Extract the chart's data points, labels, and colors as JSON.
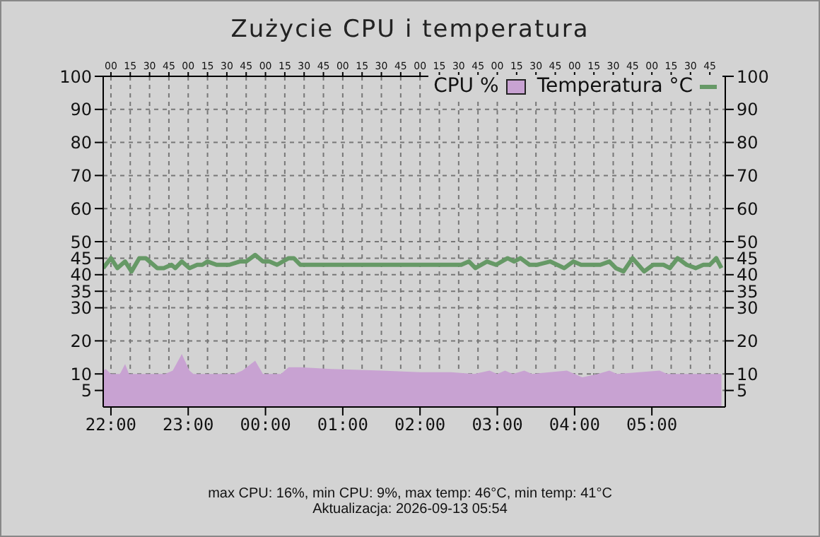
{
  "chart_data": {
    "type": "line",
    "title": "Zużycie CPU i temperatura",
    "annotations": [
      "max CPU: 16%, min CPU: 9%, max temp: 46°C, min temp: 41°C",
      "Aktualizacja: 2026-09-13 05:54"
    ],
    "xlim": [
      "2026-09-12T21:54",
      "2026-09-13T05:57"
    ],
    "xticks": [
      {
        "value": "2026-09-12T22:00",
        "label": "22:00"
      },
      {
        "value": "2026-09-12T23:00",
        "label": "23:00"
      },
      {
        "value": "2026-09-13T00:00",
        "label": "00:00"
      },
      {
        "value": "2026-09-13T01:00",
        "label": "01:00"
      },
      {
        "value": "2026-09-13T02:00",
        "label": "02:00"
      },
      {
        "value": "2026-09-13T03:00",
        "label": "03:00"
      },
      {
        "value": "2026-09-13T04:00",
        "label": "04:00"
      },
      {
        "value": "2026-09-13T05:00",
        "label": "05:00"
      }
    ],
    "x2lim": [
      "2026-09-12T21:54",
      "2026-09-13T05:57"
    ],
    "x2ticks": [
      {
        "value": "2026-09-12T22:00",
        "label": "00"
      },
      {
        "value": "2026-09-12T22:15",
        "label": "15"
      },
      {
        "value": "2026-09-12T22:30",
        "label": "30"
      },
      {
        "value": "2026-09-12T22:45",
        "label": "45"
      },
      {
        "value": "2026-09-12T23:00",
        "label": "00"
      },
      {
        "value": "2026-09-12T23:15",
        "label": "15"
      },
      {
        "value": "2026-09-12T23:30",
        "label": "30"
      },
      {
        "value": "2026-09-12T23:45",
        "label": "45"
      },
      {
        "value": "2026-09-13T00:00",
        "label": "00"
      },
      {
        "value": "2026-09-13T00:15",
        "label": "15"
      },
      {
        "value": "2026-09-13T00:30",
        "label": "30"
      },
      {
        "value": "2026-09-13T00:45",
        "label": "45"
      },
      {
        "value": "2026-09-13T01:00",
        "label": "00"
      },
      {
        "value": "2026-09-13T01:15",
        "label": "15"
      },
      {
        "value": "2026-09-13T01:30",
        "label": "30"
      },
      {
        "value": "2026-09-13T01:45",
        "label": "45"
      },
      {
        "value": "2026-09-13T02:00",
        "label": "00"
      },
      {
        "value": "2026-09-13T02:15",
        "label": "15"
      },
      {
        "value": "2026-09-13T02:30",
        "label": "30"
      },
      {
        "value": "2026-09-13T02:45",
        "label": "45"
      },
      {
        "value": "2026-09-13T03:00",
        "label": "00"
      },
      {
        "value": "2026-09-13T03:15",
        "label": "15"
      },
      {
        "value": "2026-09-13T03:30",
        "label": "30"
      },
      {
        "value": "2026-09-13T03:45",
        "label": "45"
      },
      {
        "value": "2026-09-13T04:00",
        "label": "00"
      },
      {
        "value": "2026-09-13T04:15",
        "label": "15"
      },
      {
        "value": "2026-09-13T04:30",
        "label": "30"
      },
      {
        "value": "2026-09-13T04:45",
        "label": "45"
      },
      {
        "value": "2026-09-13T05:00",
        "label": "00"
      },
      {
        "value": "2026-09-13T05:15",
        "label": "15"
      },
      {
        "value": "2026-09-13T05:30",
        "label": "30"
      },
      {
        "value": "2026-09-13T05:45",
        "label": "45"
      }
    ],
    "ylim": [
      0,
      100
    ],
    "yticks": [
      5,
      10,
      20,
      30,
      35,
      40,
      45,
      50,
      60,
      70,
      80,
      90,
      100
    ],
    "y2lim": [
      0,
      100
    ],
    "y2ticks": [
      5,
      10,
      20,
      30,
      35,
      40,
      45,
      50,
      60,
      70,
      80,
      90,
      100
    ],
    "grid": true,
    "legend": "top right",
    "marker": "none",
    "series": [
      {
        "name": "CPU %",
        "type": "area",
        "color": "#c8a2d2",
        "x": [
          "2026-09-12T21:54",
          "2026-09-12T21:56",
          "2026-09-12T22:00",
          "2026-09-12T22:07",
          "2026-09-12T22:11",
          "2026-09-12T22:14",
          "2026-09-12T22:42",
          "2026-09-12T22:48",
          "2026-09-12T22:55",
          "2026-09-12T23:01",
          "2026-09-12T23:04",
          "2026-09-12T23:36",
          "2026-09-12T23:42",
          "2026-09-12T23:52",
          "2026-09-12T23:58",
          "2026-09-13T00:12",
          "2026-09-13T00:18",
          "2026-09-13T00:27",
          "2026-09-13T00:51",
          "2026-09-13T01:30",
          "2026-09-13T02:00",
          "2026-09-13T02:24",
          "2026-09-13T02:42",
          "2026-09-13T02:54",
          "2026-09-13T03:00",
          "2026-09-13T03:06",
          "2026-09-13T03:12",
          "2026-09-13T03:21",
          "2026-09-13T03:27",
          "2026-09-13T03:54",
          "2026-09-13T04:00",
          "2026-09-13T04:06",
          "2026-09-13T04:18",
          "2026-09-13T04:27",
          "2026-09-13T04:33",
          "2026-09-13T05:06",
          "2026-09-13T05:12",
          "2026-09-13T05:54"
        ],
        "values": [
          11,
          11.5,
          10,
          10,
          13,
          10,
          10,
          11,
          16,
          11,
          10,
          10,
          11,
          14,
          10,
          10,
          12,
          12,
          11.5,
          11,
          10.5,
          10.5,
          10,
          11,
          10,
          11,
          10,
          11,
          10,
          11,
          10,
          9,
          10,
          11,
          10,
          11,
          10,
          10
        ]
      },
      {
        "name": "Temperatura °C",
        "color": "#669966",
        "x": [
          "2026-09-12T21:54",
          "2026-09-12T22:00",
          "2026-09-12T22:05",
          "2026-09-12T22:11",
          "2026-09-12T22:16",
          "2026-09-12T22:22",
          "2026-09-12T22:27",
          "2026-09-12T22:36",
          "2026-09-12T22:41",
          "2026-09-12T22:47",
          "2026-09-12T22:50",
          "2026-09-12T22:55",
          "2026-09-12T23:01",
          "2026-09-12T23:07",
          "2026-09-12T23:11",
          "2026-09-12T23:15",
          "2026-09-12T23:22",
          "2026-09-12T23:27",
          "2026-09-12T23:32",
          "2026-09-12T23:40",
          "2026-09-12T23:45",
          "2026-09-12T23:52",
          "2026-09-12T23:58",
          "2026-09-13T00:03",
          "2026-09-13T00:09",
          "2026-09-13T00:18",
          "2026-09-13T00:22",
          "2026-09-13T00:27",
          "2026-09-13T02:32",
          "2026-09-13T02:38",
          "2026-09-13T02:43",
          "2026-09-13T02:52",
          "2026-09-13T02:59",
          "2026-09-13T03:08",
          "2026-09-13T03:13",
          "2026-09-13T03:18",
          "2026-09-13T03:25",
          "2026-09-13T03:31",
          "2026-09-13T03:41",
          "2026-09-13T03:52",
          "2026-09-13T03:59",
          "2026-09-13T04:05",
          "2026-09-13T04:20",
          "2026-09-13T04:27",
          "2026-09-13T04:32",
          "2026-09-13T04:38",
          "2026-09-13T04:45",
          "2026-09-13T04:54",
          "2026-09-13T05:01",
          "2026-09-13T05:09",
          "2026-09-13T05:14",
          "2026-09-13T05:20",
          "2026-09-13T05:27",
          "2026-09-13T05:34",
          "2026-09-13T05:40",
          "2026-09-13T05:45",
          "2026-09-13T05:50",
          "2026-09-13T05:54"
        ],
        "values": [
          42,
          45,
          42,
          44,
          41,
          45,
          45,
          42,
          42,
          43,
          42,
          44,
          42,
          43,
          43,
          44,
          43,
          43,
          43,
          44,
          44,
          46,
          44,
          44,
          43,
          45,
          45,
          43,
          43,
          44,
          42,
          44,
          43,
          45,
          44,
          45,
          43,
          43,
          44,
          42,
          44,
          43,
          43,
          44,
          42,
          41,
          45,
          41,
          43,
          43,
          42,
          45,
          43,
          42,
          43,
          43,
          45,
          42
        ]
      }
    ]
  }
}
